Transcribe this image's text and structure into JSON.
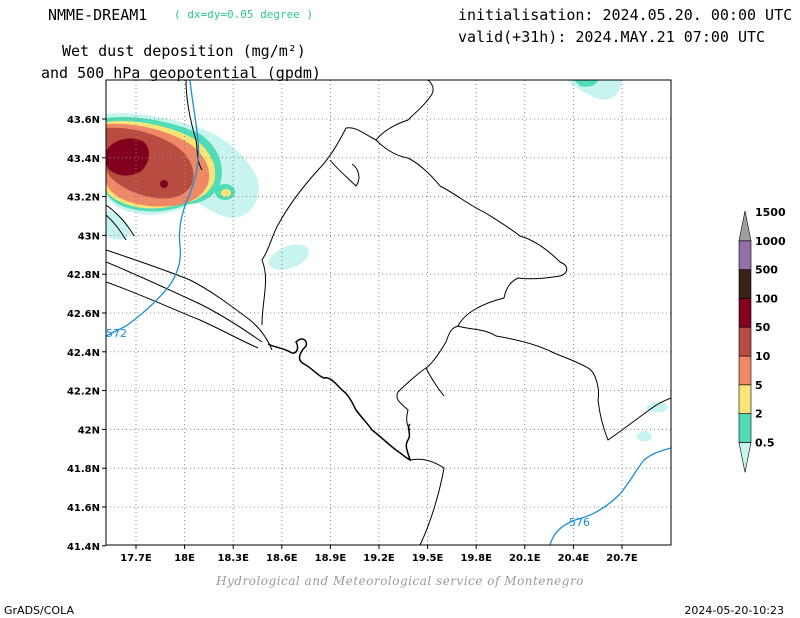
{
  "header": {
    "model": "NMME-DREAM1",
    "resolution": "( dx=dy=0.05 degree )",
    "initialisation": "initialisation: 2024.05.20. 00:00 UTC",
    "valid": "valid(+31h): 2024.MAY.21 07:00 UTC",
    "title_line1": "Wet dust deposition (mg/m²)",
    "title_line2": "and 500 hPa geopotential (gpdm)"
  },
  "map": {
    "lon_ticks": [
      "17.7E",
      "18E",
      "18.3E",
      "18.6E",
      "18.9E",
      "19.2E",
      "19.5E",
      "19.8E",
      "20.1E",
      "20.4E",
      "20.7E"
    ],
    "lat_ticks": [
      "43.6N",
      "43.4N",
      "43.2N",
      "43N",
      "42.8N",
      "42.6N",
      "42.4N",
      "42.2N",
      "42N",
      "41.8N",
      "41.6N",
      "41.4N"
    ],
    "contour_labels": [
      "572",
      "576"
    ],
    "colors": {
      "coast": "#000000",
      "geopotential": "#1a8fd6",
      "grid": "#888888"
    }
  },
  "colorbar": {
    "levels": [
      "0.5",
      "2",
      "5",
      "10",
      "50",
      "100",
      "500",
      "1000",
      "1500"
    ],
    "colors": [
      "#c8f4f0",
      "#50dcb4",
      "#f8e478",
      "#ee8866",
      "#b84c40",
      "#82001e",
      "#3c2018",
      "#9470a8",
      "#a0a0a0"
    ]
  },
  "footer": {
    "credit": "Hydrological and Meteorological service of Montenegro",
    "left": "GrADS/COLA",
    "right": "2024-05-20-10:23"
  }
}
